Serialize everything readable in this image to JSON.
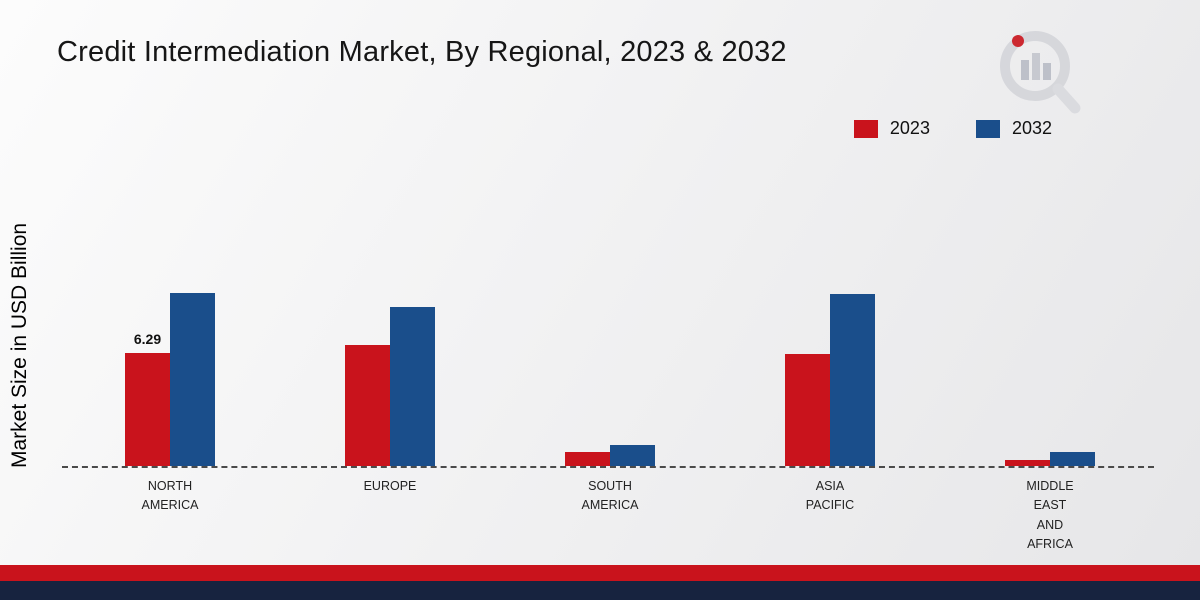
{
  "title": "Credit Intermediation Market, By Regional, 2023 & 2032",
  "ylabel": "Market Size in USD Billion",
  "legend": {
    "items": [
      {
        "label": "2023",
        "color": "#c9131c"
      },
      {
        "label": "2032",
        "color": "#1a4e8b"
      }
    ]
  },
  "chart_data": {
    "type": "bar",
    "title": "Credit Intermediation Market, By Regional, 2023 & 2032",
    "xlabel": "",
    "ylabel": "Market Size in USD Billion",
    "ylim": [
      0,
      10
    ],
    "grid": false,
    "legend_position": "top-right",
    "baseline": "dashed",
    "categories": [
      "NORTH AMERICA",
      "EUROPE",
      "SOUTH AMERICA",
      "ASIA PACIFIC",
      "MIDDLE EAST AND AFRICA"
    ],
    "label_lines": [
      [
        "NORTH",
        "AMERICA"
      ],
      [
        "EUROPE"
      ],
      [
        "SOUTH",
        "AMERICA"
      ],
      [
        "ASIA",
        "PACIFIC"
      ],
      [
        "MIDDLE",
        "EAST",
        "AND",
        "AFRICA"
      ]
    ],
    "series": [
      {
        "name": "2023",
        "color": "#c9131c",
        "values": [
          6.29,
          6.7,
          0.8,
          6.2,
          0.35
        ],
        "value_labels": [
          "6.29",
          "",
          "",
          "",
          ""
        ]
      },
      {
        "name": "2032",
        "color": "#1a4e8b",
        "values": [
          9.6,
          8.85,
          1.15,
          9.55,
          0.8
        ],
        "value_labels": [
          "",
          "",
          "",
          "",
          ""
        ]
      }
    ]
  }
}
